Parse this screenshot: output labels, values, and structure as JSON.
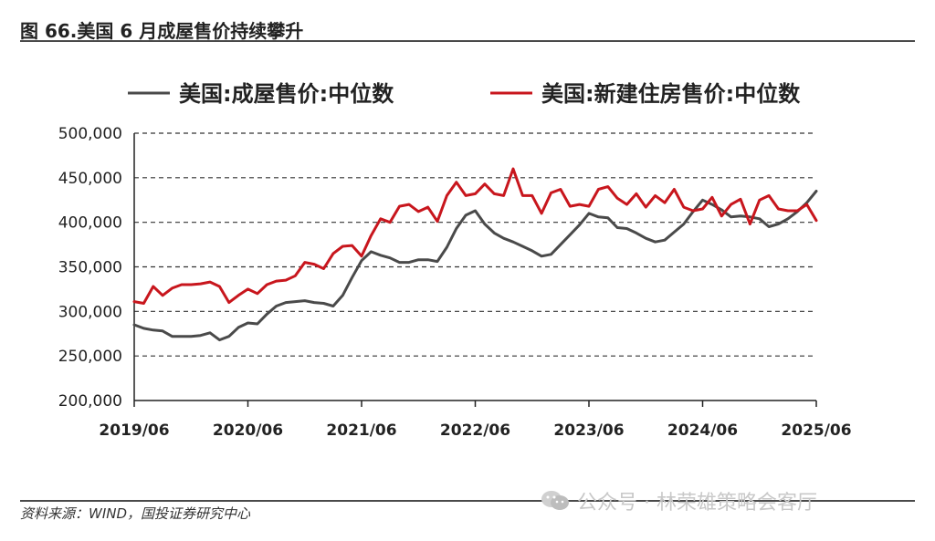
{
  "figure_title": "图 66.美国 6 月成屋售价持续攀升",
  "source": "资料来源：WIND，国投证券研究中心",
  "watermark": "公众号 · 林荣雄策略会客厅",
  "watermark_icon": "wechat-icon",
  "chart_data": {
    "type": "line",
    "title": "",
    "xlabel": "",
    "ylabel": "",
    "ylim": [
      200000,
      500000
    ],
    "y_ticks": [
      200000,
      250000,
      300000,
      350000,
      400000,
      450000,
      500000
    ],
    "y_tick_labels": [
      "200,000",
      "250,000",
      "300,000",
      "350,000",
      "400,000",
      "450,000",
      "500,000"
    ],
    "x_range": [
      "2019-06",
      "2025-06"
    ],
    "x_ticks": [
      "2019-06",
      "2020-06",
      "2021-06",
      "2022-06",
      "2023-06",
      "2024-06",
      "2025-06"
    ],
    "x_tick_labels": [
      "2019/06",
      "2020/06",
      "2021/06",
      "2022/06",
      "2023/06",
      "2024/06",
      "2025/06"
    ],
    "grid": "horizontal dashed",
    "legend": "top",
    "series": [
      {
        "name": "美国:成屋售价:中位数",
        "color": "#4a4a4a",
        "points": [
          [
            "2019-06",
            285000
          ],
          [
            "2019-07",
            281000
          ],
          [
            "2019-08",
            279000
          ],
          [
            "2019-09",
            278000
          ],
          [
            "2019-10",
            272000
          ],
          [
            "2019-11",
            272000
          ],
          [
            "2019-12",
            272000
          ],
          [
            "2020-01",
            273000
          ],
          [
            "2020-02",
            276000
          ],
          [
            "2020-03",
            268000
          ],
          [
            "2020-04",
            272000
          ],
          [
            "2020-05",
            282000
          ],
          [
            "2020-06",
            287000
          ],
          [
            "2020-07",
            286000
          ],
          [
            "2020-08",
            297000
          ],
          [
            "2020-09",
            306000
          ],
          [
            "2020-10",
            310000
          ],
          [
            "2020-11",
            311000
          ],
          [
            "2020-12",
            312000
          ],
          [
            "2021-01",
            310000
          ],
          [
            "2021-02",
            309000
          ],
          [
            "2021-03",
            306000
          ],
          [
            "2021-04",
            318000
          ],
          [
            "2021-05",
            338000
          ],
          [
            "2021-06",
            357000
          ],
          [
            "2021-07",
            367000
          ],
          [
            "2021-08",
            363000
          ],
          [
            "2021-09",
            360000
          ],
          [
            "2021-10",
            355000
          ],
          [
            "2021-11",
            355000
          ],
          [
            "2021-12",
            358000
          ],
          [
            "2022-01",
            358000
          ],
          [
            "2022-02",
            356000
          ],
          [
            "2022-03",
            372000
          ],
          [
            "2022-04",
            393000
          ],
          [
            "2022-05",
            408000
          ],
          [
            "2022-06",
            413000
          ],
          [
            "2022-07",
            398000
          ],
          [
            "2022-08",
            388000
          ],
          [
            "2022-09",
            382000
          ],
          [
            "2022-10",
            378000
          ],
          [
            "2022-11",
            373000
          ],
          [
            "2022-12",
            368000
          ],
          [
            "2023-01",
            362000
          ],
          [
            "2023-02",
            364000
          ],
          [
            "2023-03",
            375000
          ],
          [
            "2023-04",
            386000
          ],
          [
            "2023-05",
            397000
          ],
          [
            "2023-06",
            410000
          ],
          [
            "2023-07",
            406000
          ],
          [
            "2023-08",
            405000
          ],
          [
            "2023-09",
            394000
          ],
          [
            "2023-10",
            393000
          ],
          [
            "2023-11",
            388000
          ],
          [
            "2023-12",
            382000
          ],
          [
            "2024-01",
            378000
          ],
          [
            "2024-02",
            380000
          ],
          [
            "2024-03",
            389000
          ],
          [
            "2024-04",
            398000
          ],
          [
            "2024-05",
            412000
          ],
          [
            "2024-06",
            425000
          ],
          [
            "2024-07",
            420000
          ],
          [
            "2024-08",
            414000
          ],
          [
            "2024-09",
            406000
          ],
          [
            "2024-10",
            407000
          ],
          [
            "2024-11",
            406000
          ],
          [
            "2024-12",
            404000
          ],
          [
            "2025-01",
            395000
          ],
          [
            "2025-02",
            398000
          ],
          [
            "2025-03",
            404000
          ],
          [
            "2025-04",
            412000
          ],
          [
            "2025-05",
            422000
          ],
          [
            "2025-06",
            435000
          ]
        ]
      },
      {
        "name": "美国:新建住房售价:中位数",
        "color": "#c8161d",
        "points": [
          [
            "2019-06",
            311000
          ],
          [
            "2019-07",
            309000
          ],
          [
            "2019-08",
            328000
          ],
          [
            "2019-09",
            318000
          ],
          [
            "2019-10",
            326000
          ],
          [
            "2019-11",
            330000
          ],
          [
            "2019-12",
            330000
          ],
          [
            "2020-01",
            331000
          ],
          [
            "2020-02",
            333000
          ],
          [
            "2020-03",
            328000
          ],
          [
            "2020-04",
            310000
          ],
          [
            "2020-05",
            318000
          ],
          [
            "2020-06",
            325000
          ],
          [
            "2020-07",
            320000
          ],
          [
            "2020-08",
            330000
          ],
          [
            "2020-09",
            334000
          ],
          [
            "2020-10",
            335000
          ],
          [
            "2020-11",
            340000
          ],
          [
            "2020-12",
            355000
          ],
          [
            "2021-01",
            353000
          ],
          [
            "2021-02",
            348000
          ],
          [
            "2021-03",
            365000
          ],
          [
            "2021-04",
            373000
          ],
          [
            "2021-05",
            374000
          ],
          [
            "2021-06",
            362000
          ],
          [
            "2021-07",
            385000
          ],
          [
            "2021-08",
            404000
          ],
          [
            "2021-09",
            400000
          ],
          [
            "2021-10",
            418000
          ],
          [
            "2021-11",
            420000
          ],
          [
            "2021-12",
            412000
          ],
          [
            "2022-01",
            417000
          ],
          [
            "2022-02",
            401000
          ],
          [
            "2022-03",
            430000
          ],
          [
            "2022-04",
            445000
          ],
          [
            "2022-05",
            430000
          ],
          [
            "2022-06",
            432000
          ],
          [
            "2022-07",
            443000
          ],
          [
            "2022-08",
            432000
          ],
          [
            "2022-09",
            430000
          ],
          [
            "2022-10",
            460000
          ],
          [
            "2022-11",
            430000
          ],
          [
            "2022-12",
            430000
          ],
          [
            "2023-01",
            410000
          ],
          [
            "2023-02",
            433000
          ],
          [
            "2023-03",
            437000
          ],
          [
            "2023-04",
            418000
          ],
          [
            "2023-05",
            420000
          ],
          [
            "2023-06",
            418000
          ],
          [
            "2023-07",
            437000
          ],
          [
            "2023-08",
            440000
          ],
          [
            "2023-09",
            427000
          ],
          [
            "2023-10",
            420000
          ],
          [
            "2023-11",
            432000
          ],
          [
            "2023-12",
            417000
          ],
          [
            "2024-01",
            430000
          ],
          [
            "2024-02",
            422000
          ],
          [
            "2024-03",
            437000
          ],
          [
            "2024-04",
            417000
          ],
          [
            "2024-05",
            413000
          ],
          [
            "2024-06",
            415000
          ],
          [
            "2024-07",
            428000
          ],
          [
            "2024-08",
            407000
          ],
          [
            "2024-09",
            420000
          ],
          [
            "2024-10",
            426000
          ],
          [
            "2024-11",
            398000
          ],
          [
            "2024-12",
            425000
          ],
          [
            "2025-01",
            430000
          ],
          [
            "2025-02",
            415000
          ],
          [
            "2025-03",
            413000
          ],
          [
            "2025-04",
            413000
          ],
          [
            "2025-05",
            420000
          ],
          [
            "2025-06",
            402000
          ]
        ]
      }
    ]
  }
}
